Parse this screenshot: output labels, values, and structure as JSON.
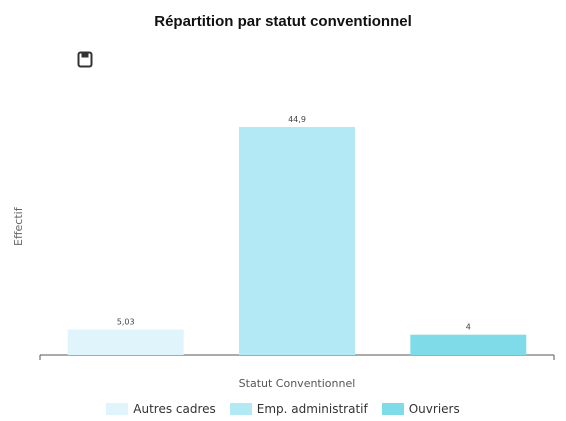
{
  "chart_data": {
    "type": "bar",
    "title": "Répartition par statut conventionnel",
    "xlabel": "Statut Conventionnel",
    "ylabel": "Effectif",
    "categories": [
      "Autres cadres",
      "Emp. administratif",
      "Ouvriers"
    ],
    "values": [
      5.03,
      44.9,
      4
    ],
    "value_labels": [
      "5,03",
      "44,9",
      "4"
    ],
    "colors": [
      "#dff5fb",
      "#b3e9f5",
      "#7fdbe8"
    ],
    "ylim": [
      0,
      50
    ],
    "grid": false,
    "legend_position": "bottom"
  },
  "toolbar": {
    "save_icon": "save-icon"
  }
}
